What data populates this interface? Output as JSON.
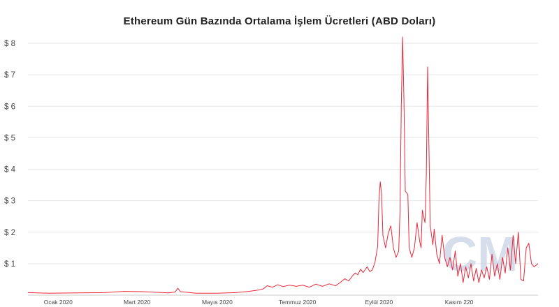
{
  "chart_data": {
    "type": "line",
    "title": "Ethereum Gün Bazında Ortalama İşlem Ücretleri (ABD Doları)",
    "xlabel": "",
    "ylabel": "",
    "ylim": [
      0,
      8.4
    ],
    "xlim": [
      "2019-12-09",
      "2020-12-31"
    ],
    "yticks": [
      {
        "value": 1,
        "label": "$ 1"
      },
      {
        "value": 2,
        "label": "$ 2"
      },
      {
        "value": 3,
        "label": "$ 3"
      },
      {
        "value": 4,
        "label": "$ 4"
      },
      {
        "value": 5,
        "label": "$ 5"
      },
      {
        "value": 6,
        "label": "$ 6"
      },
      {
        "value": 7,
        "label": "$ 7"
      },
      {
        "value": 8,
        "label": "$ 8"
      }
    ],
    "xticks": [
      {
        "date": "2020-01-01",
        "label": "Ocak 2020"
      },
      {
        "date": "2020-03-01",
        "label": "Mart 2020"
      },
      {
        "date": "2020-05-01",
        "label": "Mayıs 2020"
      },
      {
        "date": "2020-07-01",
        "label": "Temmuz 2020"
      },
      {
        "date": "2020-09-01",
        "label": "Eylül 2020"
      },
      {
        "date": "2020-11-01",
        "label": "Kasım 220"
      }
    ],
    "grid": true,
    "line_color": "#e8283a",
    "series": [
      {
        "name": "",
        "points": [
          [
            "2019-12-09",
            0.08
          ],
          [
            "2019-12-25",
            0.06
          ],
          [
            "2020-01-15",
            0.07
          ],
          [
            "2020-02-05",
            0.08
          ],
          [
            "2020-02-20",
            0.12
          ],
          [
            "2020-03-05",
            0.11
          ],
          [
            "2020-03-15",
            0.09
          ],
          [
            "2020-03-25",
            0.07
          ],
          [
            "2020-03-30",
            0.1
          ],
          [
            "2020-04-01",
            0.22
          ],
          [
            "2020-04-03",
            0.11
          ],
          [
            "2020-04-15",
            0.06
          ],
          [
            "2020-05-01",
            0.06
          ],
          [
            "2020-05-15",
            0.08
          ],
          [
            "2020-05-25",
            0.12
          ],
          [
            "2020-06-01",
            0.16
          ],
          [
            "2020-06-05",
            0.2
          ],
          [
            "2020-06-08",
            0.3
          ],
          [
            "2020-06-12",
            0.25
          ],
          [
            "2020-06-16",
            0.33
          ],
          [
            "2020-06-20",
            0.27
          ],
          [
            "2020-06-25",
            0.32
          ],
          [
            "2020-06-30",
            0.28
          ],
          [
            "2020-07-05",
            0.32
          ],
          [
            "2020-07-10",
            0.25
          ],
          [
            "2020-07-15",
            0.35
          ],
          [
            "2020-07-20",
            0.28
          ],
          [
            "2020-07-25",
            0.36
          ],
          [
            "2020-07-30",
            0.3
          ],
          [
            "2020-08-03",
            0.42
          ],
          [
            "2020-08-06",
            0.52
          ],
          [
            "2020-08-09",
            0.45
          ],
          [
            "2020-08-12",
            0.62
          ],
          [
            "2020-08-14",
            0.7
          ],
          [
            "2020-08-16",
            0.65
          ],
          [
            "2020-08-18",
            0.82
          ],
          [
            "2020-08-20",
            0.72
          ],
          [
            "2020-08-23",
            0.9
          ],
          [
            "2020-08-25",
            0.75
          ],
          [
            "2020-08-27",
            0.8
          ],
          [
            "2020-08-29",
            1.05
          ],
          [
            "2020-08-31",
            1.55
          ],
          [
            "2020-09-01",
            3.0
          ],
          [
            "2020-09-02",
            3.6
          ],
          [
            "2020-09-03",
            3.2
          ],
          [
            "2020-09-04",
            1.9
          ],
          [
            "2020-09-06",
            1.5
          ],
          [
            "2020-09-08",
            1.95
          ],
          [
            "2020-09-10",
            2.2
          ],
          [
            "2020-09-12",
            1.5
          ],
          [
            "2020-09-14",
            1.2
          ],
          [
            "2020-09-16",
            1.4
          ],
          [
            "2020-09-17",
            2.6
          ],
          [
            "2020-09-18",
            6.0
          ],
          [
            "2020-09-19",
            8.2
          ],
          [
            "2020-09-20",
            6.2
          ],
          [
            "2020-09-21",
            3.3
          ],
          [
            "2020-09-23",
            3.2
          ],
          [
            "2020-09-24",
            1.5
          ],
          [
            "2020-09-26",
            1.2
          ],
          [
            "2020-09-28",
            1.5
          ],
          [
            "2020-09-30",
            2.3
          ],
          [
            "2020-10-02",
            1.7
          ],
          [
            "2020-10-03",
            1.5
          ],
          [
            "2020-10-04",
            2.7
          ],
          [
            "2020-10-06",
            2.3
          ],
          [
            "2020-10-07",
            3.8
          ],
          [
            "2020-10-08",
            7.25
          ],
          [
            "2020-10-09",
            4.8
          ],
          [
            "2020-10-10",
            2.2
          ],
          [
            "2020-10-12",
            1.6
          ],
          [
            "2020-10-13",
            2.1
          ],
          [
            "2020-10-15",
            1.3
          ],
          [
            "2020-10-17",
            1.0
          ],
          [
            "2020-10-19",
            1.9
          ],
          [
            "2020-10-21",
            1.2
          ],
          [
            "2020-10-23",
            0.9
          ],
          [
            "2020-10-25",
            1.2
          ],
          [
            "2020-10-27",
            0.8
          ],
          [
            "2020-10-29",
            1.4
          ],
          [
            "2020-10-31",
            0.6
          ],
          [
            "2020-11-02",
            1.0
          ],
          [
            "2020-11-04",
            0.4
          ],
          [
            "2020-11-06",
            0.9
          ],
          [
            "2020-11-08",
            0.55
          ],
          [
            "2020-11-10",
            1.0
          ],
          [
            "2020-11-12",
            0.45
          ],
          [
            "2020-11-14",
            0.85
          ],
          [
            "2020-11-16",
            0.4
          ],
          [
            "2020-11-18",
            0.8
          ],
          [
            "2020-11-20",
            0.55
          ],
          [
            "2020-11-22",
            0.9
          ],
          [
            "2020-11-24",
            0.5
          ],
          [
            "2020-11-26",
            1.3
          ],
          [
            "2020-11-28",
            0.6
          ],
          [
            "2020-11-30",
            1.0
          ],
          [
            "2020-12-02",
            0.5
          ],
          [
            "2020-12-04",
            1.2
          ],
          [
            "2020-12-06",
            0.7
          ],
          [
            "2020-12-08",
            1.5
          ],
          [
            "2020-12-10",
            0.8
          ],
          [
            "2020-12-12",
            1.9
          ],
          [
            "2020-12-14",
            1.0
          ],
          [
            "2020-12-16",
            2.0
          ],
          [
            "2020-12-18",
            0.5
          ],
          [
            "2020-12-20",
            0.45
          ],
          [
            "2020-12-22",
            1.5
          ],
          [
            "2020-12-24",
            1.65
          ],
          [
            "2020-12-26",
            1.0
          ],
          [
            "2020-12-28",
            0.9
          ],
          [
            "2020-12-31",
            1.0
          ]
        ]
      }
    ]
  },
  "watermark": {
    "text": "CM",
    "color": "#c9d3e6"
  }
}
